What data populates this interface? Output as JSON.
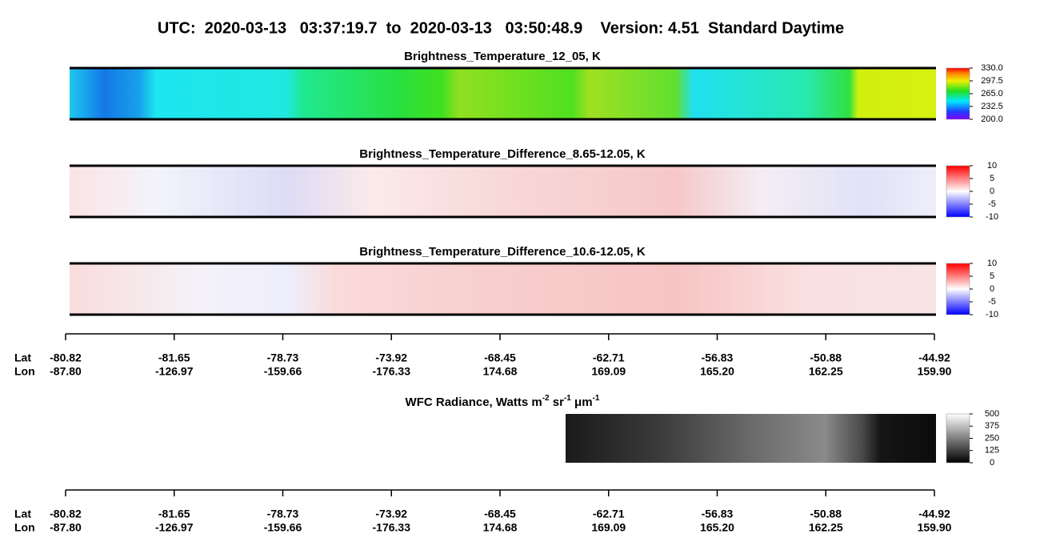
{
  "title": "UTC:  2020-03-13   03:37:19.7  to  2020-03-13   03:50:48.9    Version: 4.51  Standard Daytime",
  "panels": [
    {
      "title": "Brightness_Temperature_12_05, K",
      "colorbar": {
        "lim": [
          200,
          330
        ],
        "ticks": [
          {
            "value": 330,
            "label": "330.0"
          },
          {
            "value": 297.5,
            "label": "297.5"
          },
          {
            "value": 265,
            "label": "265.0"
          },
          {
            "value": 232.5,
            "label": "232.5"
          },
          {
            "value": 200,
            "label": "200.0"
          }
        ]
      }
    },
    {
      "title": "Brightness_Temperature_Difference_8.65-12.05, K",
      "colorbar": {
        "lim": [
          -10,
          10
        ],
        "ticks": [
          10,
          5,
          0,
          -5,
          -10
        ]
      }
    },
    {
      "title": "Brightness_Temperature_Difference_10.6-12.05, K",
      "colorbar": {
        "lim": [
          -10,
          10
        ],
        "ticks": [
          10,
          5,
          0,
          -5,
          -10
        ]
      }
    },
    {
      "title_segments": [
        {
          "text": "WFC Radiance, Watts m"
        },
        {
          "text": "-2",
          "sup": true
        },
        {
          "text": " sr"
        },
        {
          "text": "-1",
          "sup": true
        },
        {
          "text": " μm"
        },
        {
          "text": "-1",
          "sup": true
        }
      ],
      "colorbar": {
        "lim": [
          0,
          500
        ],
        "ticks": [
          500,
          375,
          250,
          125,
          0
        ]
      }
    }
  ],
  "axes": [
    {
      "lat_label": "Lat",
      "lon_label": "Lon",
      "lat": [
        "-80.82",
        "-81.65",
        "-78.73",
        "-73.92",
        "-68.45",
        "-62.71",
        "-56.83",
        "-50.88",
        "-44.92"
      ],
      "lon": [
        "-87.80",
        "-126.97",
        "-159.66",
        "-176.33",
        "174.68",
        "169.09",
        "165.20",
        "162.25",
        "159.90"
      ]
    },
    {
      "lat_label": "Lat",
      "lon_label": "Lon",
      "lat": [
        "-80.82",
        "-81.65",
        "-78.73",
        "-73.92",
        "-68.45",
        "-62.71",
        "-56.83",
        "-50.88",
        "-44.92"
      ],
      "lon": [
        "-87.80",
        "-126.97",
        "-159.66",
        "-176.33",
        "174.68",
        "169.09",
        "165.20",
        "162.25",
        "159.90"
      ]
    }
  ]
}
